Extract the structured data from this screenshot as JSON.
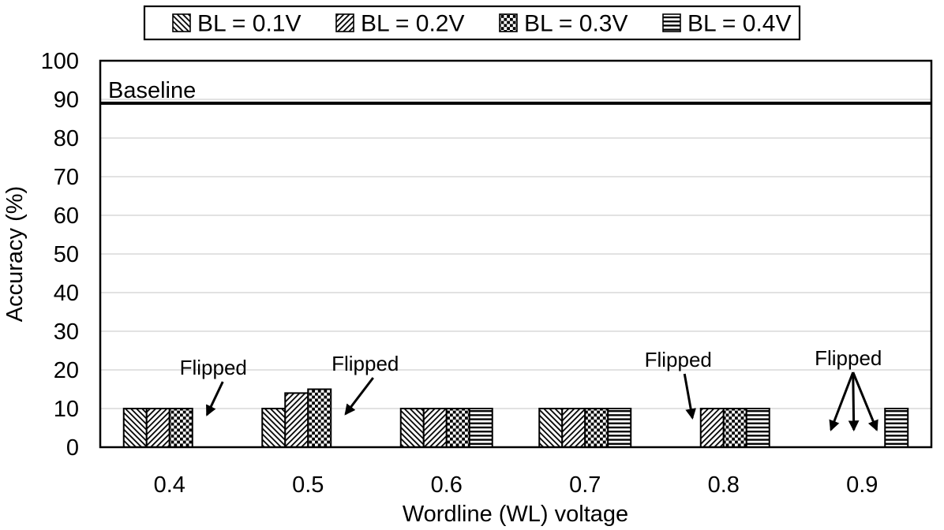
{
  "chart_data": {
    "type": "bar",
    "title": "",
    "xlabel": "Wordline (WL) voltage",
    "ylabel": "Accuracy (%)",
    "categories": [
      "0.4",
      "0.5",
      "0.6",
      "0.7",
      "0.8",
      "0.9"
    ],
    "series": [
      {
        "name": "BL = 0.1V",
        "pattern": "diagonal-backslash",
        "values": [
          10,
          10,
          10,
          10,
          null,
          null
        ]
      },
      {
        "name": "BL = 0.2V",
        "pattern": "diagonal-slash",
        "values": [
          10,
          14,
          10,
          10,
          10,
          null
        ]
      },
      {
        "name": "BL = 0.3V",
        "pattern": "checkerboard",
        "values": [
          10,
          15,
          10,
          10,
          10,
          null
        ]
      },
      {
        "name": "BL = 0.4V",
        "pattern": "horizontal-lines",
        "values": [
          null,
          null,
          10,
          10,
          10,
          10
        ]
      }
    ],
    "baseline": {
      "label": "Baseline",
      "value": 89
    },
    "annotations": [
      {
        "text": "Flipped",
        "category": "0.4",
        "series": [
          "BL = 0.4V"
        ],
        "label_dx": 12,
        "label_y": 466,
        "arrow_start_dx": 12,
        "tip_y": 526
      },
      {
        "text": "Flipped",
        "category": "0.5",
        "series": [
          "BL = 0.4V"
        ],
        "label_dx": 29,
        "label_y": 461,
        "arrow_start_dx": 10,
        "tip_y": 525
      },
      {
        "text": "Flipped",
        "category": "0.8",
        "series": [
          "BL = 0.1V"
        ],
        "label_dx": -14,
        "label_y": 456,
        "arrow_start_dx": 8,
        "tip_y": 530
      },
      {
        "text": "Flipped",
        "category": "0.9",
        "series": [
          "BL = 0.1V",
          "BL = 0.2V",
          "BL = 0.3V"
        ],
        "label_dx": -3,
        "label_y": 454,
        "arrow_start_dx": 6,
        "tip_y": 545
      }
    ],
    "ylim": [
      0,
      100
    ],
    "ytick_step": 10,
    "grid": true,
    "legend_position": "top",
    "colors": {
      "foreground": "#000000",
      "gridline": "#d9d9d9",
      "background": "#ffffff"
    }
  }
}
